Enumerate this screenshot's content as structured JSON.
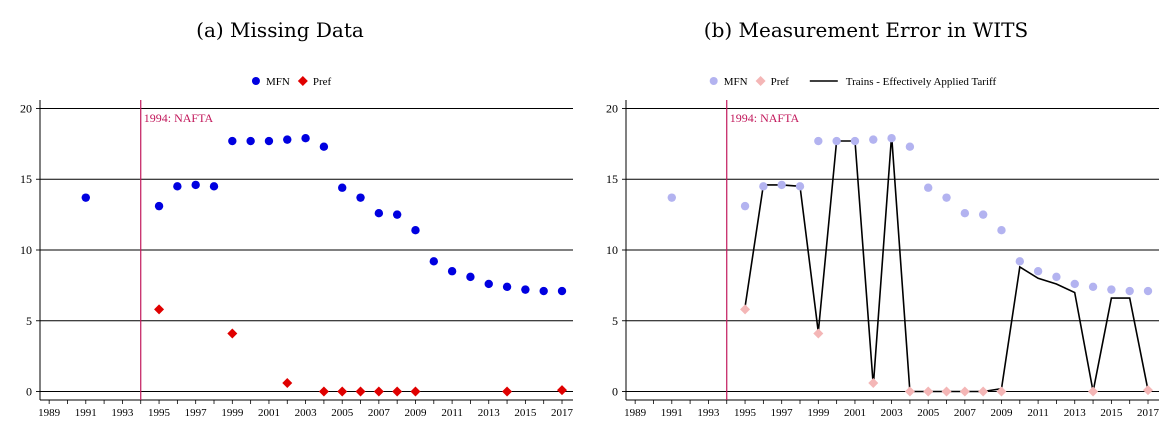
{
  "chart_data": [
    {
      "type": "scatter",
      "title": "(a)  Missing Data",
      "xlabel": "",
      "ylabel": "",
      "xlim": [
        1988.5,
        2017.6
      ],
      "ylim": [
        -0.6,
        20.6
      ],
      "xticks": [
        1989,
        1991,
        1993,
        1995,
        1997,
        1999,
        2001,
        2003,
        2005,
        2007,
        2009,
        2011,
        2013,
        2015,
        2017
      ],
      "yticks": [
        0,
        5,
        10,
        15,
        20
      ],
      "grid": "horizontal",
      "legend": "top-center",
      "annotation": {
        "x": 1994,
        "label": "1994: NAFTA",
        "color": "#c2185b"
      },
      "series": [
        {
          "name": "MFN",
          "marker": "circle",
          "color": "#0000e0",
          "points": [
            [
              1991,
              13.7
            ],
            [
              1995,
              13.1
            ],
            [
              1996,
              14.5
            ],
            [
              1997,
              14.6
            ],
            [
              1998,
              14.5
            ],
            [
              1999,
              17.7
            ],
            [
              2000,
              17.7
            ],
            [
              2001,
              17.7
            ],
            [
              2002,
              17.8
            ],
            [
              2003,
              17.9
            ],
            [
              2004,
              17.3
            ],
            [
              2005,
              14.4
            ],
            [
              2006,
              13.7
            ],
            [
              2007,
              12.6
            ],
            [
              2008,
              12.5
            ],
            [
              2009,
              11.4
            ],
            [
              2010,
              9.2
            ],
            [
              2011,
              8.5
            ],
            [
              2012,
              8.1
            ],
            [
              2013,
              7.6
            ],
            [
              2014,
              7.4
            ],
            [
              2015,
              7.2
            ],
            [
              2016,
              7.1
            ],
            [
              2017,
              7.1
            ]
          ]
        },
        {
          "name": "Pref",
          "marker": "diamond",
          "color": "#e00000",
          "points": [
            [
              1995,
              5.8
            ],
            [
              1999,
              4.1
            ],
            [
              2002,
              0.6
            ],
            [
              2004,
              0
            ],
            [
              2005,
              0
            ],
            [
              2006,
              0
            ],
            [
              2007,
              0
            ],
            [
              2008,
              0
            ],
            [
              2009,
              0
            ],
            [
              2014,
              0
            ],
            [
              2017,
              0.1
            ]
          ]
        }
      ]
    },
    {
      "type": "scatter",
      "title": "(b)  Measurement Error in WITS",
      "xlabel": "",
      "ylabel": "",
      "xlim": [
        1988.5,
        2017.6
      ],
      "ylim": [
        -0.6,
        20.6
      ],
      "xticks": [
        1989,
        1991,
        1993,
        1995,
        1997,
        1999,
        2001,
        2003,
        2005,
        2007,
        2009,
        2011,
        2013,
        2015,
        2017
      ],
      "yticks": [
        0,
        5,
        10,
        15,
        20
      ],
      "grid": "horizontal",
      "legend": "top-center",
      "annotation": {
        "x": 1994,
        "label": "1994: NAFTA",
        "color": "#c2185b"
      },
      "series": [
        {
          "name": "MFN",
          "marker": "circle",
          "color": "#b3b3f0",
          "points": [
            [
              1991,
              13.7
            ],
            [
              1995,
              13.1
            ],
            [
              1996,
              14.5
            ],
            [
              1997,
              14.6
            ],
            [
              1998,
              14.5
            ],
            [
              1999,
              17.7
            ],
            [
              2000,
              17.7
            ],
            [
              2001,
              17.7
            ],
            [
              2002,
              17.8
            ],
            [
              2003,
              17.9
            ],
            [
              2004,
              17.3
            ],
            [
              2005,
              14.4
            ],
            [
              2006,
              13.7
            ],
            [
              2007,
              12.6
            ],
            [
              2008,
              12.5
            ],
            [
              2009,
              11.4
            ],
            [
              2010,
              9.2
            ],
            [
              2011,
              8.5
            ],
            [
              2012,
              8.1
            ],
            [
              2013,
              7.6
            ],
            [
              2014,
              7.4
            ],
            [
              2015,
              7.2
            ],
            [
              2016,
              7.1
            ],
            [
              2017,
              7.1
            ]
          ]
        },
        {
          "name": "Pref",
          "marker": "diamond",
          "color": "#f4b6b6",
          "points": [
            [
              1995,
              5.8
            ],
            [
              1999,
              4.1
            ],
            [
              2002,
              0.6
            ],
            [
              2004,
              0
            ],
            [
              2005,
              0
            ],
            [
              2006,
              0
            ],
            [
              2007,
              0
            ],
            [
              2008,
              0
            ],
            [
              2009,
              0
            ],
            [
              2014,
              0
            ],
            [
              2017,
              0.1
            ]
          ]
        },
        {
          "name": "Trains - Effectively Applied Tariff",
          "marker": "line",
          "color": "#000000",
          "points": [
            [
              1995,
              6.0
            ],
            [
              1996,
              14.6
            ],
            [
              1997,
              14.6
            ],
            [
              1998,
              14.5
            ],
            [
              1999,
              4.2
            ],
            [
              2000,
              17.7
            ],
            [
              2001,
              17.7
            ],
            [
              2002,
              0.4
            ],
            [
              2003,
              18.1
            ],
            [
              2004,
              0
            ],
            [
              2005,
              0
            ],
            [
              2006,
              0
            ],
            [
              2007,
              0
            ],
            [
              2008,
              0
            ],
            [
              2009,
              0.2
            ],
            [
              2010,
              8.8
            ],
            [
              2011,
              8.0
            ],
            [
              2012,
              7.6
            ],
            [
              2013,
              7.0
            ],
            [
              2014,
              0
            ],
            [
              2015,
              6.6
            ],
            [
              2016,
              6.6
            ],
            [
              2017,
              0.1
            ]
          ]
        }
      ]
    }
  ]
}
